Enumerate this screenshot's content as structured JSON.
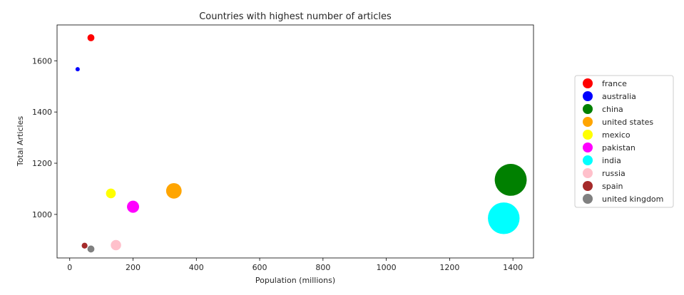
{
  "chart_data": {
    "type": "scatter",
    "title": "Countries with highest number of articles",
    "xlabel": "Population (millions)",
    "ylabel": "Total Articles",
    "xlim": [
      -40,
      1465
    ],
    "ylim": [
      830,
      1740
    ],
    "xticks": [
      0,
      200,
      400,
      600,
      800,
      1000,
      1200,
      1400
    ],
    "yticks": [
      1000,
      1200,
      1400,
      1600
    ],
    "grid": false,
    "legend_position": "right, outside plot area",
    "series": [
      {
        "name": "france",
        "color": "#ff0000",
        "x": 67,
        "y": 1690,
        "size": 67
      },
      {
        "name": "australia",
        "color": "#0000ff",
        "x": 25,
        "y": 1567,
        "size": 25
      },
      {
        "name": "china",
        "color": "#008000",
        "x": 1393,
        "y": 1135,
        "size": 1393
      },
      {
        "name": "united states",
        "color": "#ffa500",
        "x": 329,
        "y": 1092,
        "size": 329
      },
      {
        "name": "mexico",
        "color": "#ffff00",
        "x": 130,
        "y": 1082,
        "size": 130
      },
      {
        "name": "pakistan",
        "color": "#ff00ff",
        "x": 200,
        "y": 1030,
        "size": 200
      },
      {
        "name": "india",
        "color": "#00ffff",
        "x": 1371,
        "y": 985,
        "size": 1371
      },
      {
        "name": "russia",
        "color": "#ffc0cb",
        "x": 146,
        "y": 880,
        "size": 146
      },
      {
        "name": "spain",
        "color": "#a52a2a",
        "x": 47,
        "y": 878,
        "size": 47
      },
      {
        "name": "united kingdom",
        "color": "#808080",
        "x": 67,
        "y": 865,
        "size": 67
      }
    ]
  }
}
